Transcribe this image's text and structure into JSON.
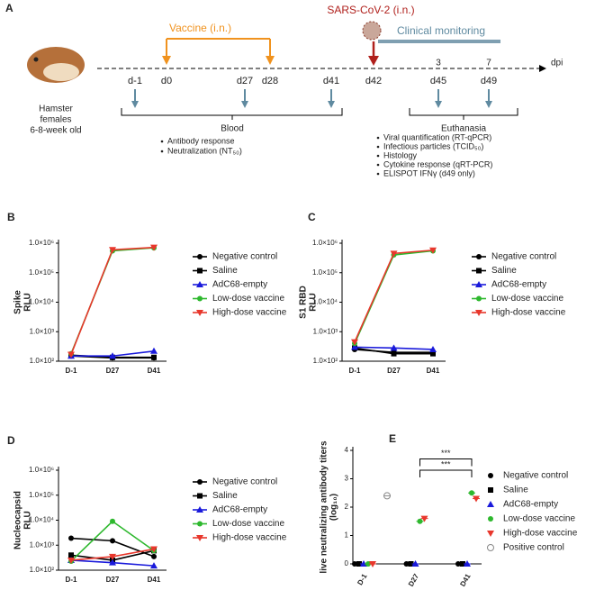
{
  "panel_a": {
    "label": "A",
    "subject": [
      "Hamster",
      "females",
      "6-8-week old"
    ],
    "vaccine": "Vaccine (i.n.)",
    "challenge": "SARS-CoV-2 (i.n.)",
    "monitoring": "Clinical monitoring",
    "dpi": "dpi",
    "dpi_marks": [
      "3",
      "7"
    ],
    "days": [
      "d-1",
      "d0",
      "d27",
      "d28",
      "d41",
      "d42",
      "d45",
      "d49"
    ],
    "blood": "Blood",
    "euthanasia": "Euthanasia",
    "blood_items": [
      "Antibody response",
      "Neutralization (NT₅₀)"
    ],
    "euthanasia_items": [
      "Viral quantification (RT-qPCR)",
      "Infectious particles (TCID₅₀)",
      "Histology",
      "Cytokine response (qRT-PCR)",
      "ELISPOT IFNγ (d49 only)"
    ]
  },
  "chart_data": [
    {
      "type": "line",
      "panel": "B",
      "ylabel": [
        "Spike",
        "RLU"
      ],
      "log_scale": true,
      "categories": [
        "D-1",
        "D27",
        "D41"
      ],
      "ylim": [
        100,
        1000000
      ],
      "yticks": [
        {
          "value": 100,
          "label": "1.0×10²"
        },
        {
          "value": 1000,
          "label": "1.0×10³"
        },
        {
          "value": 10000,
          "label": "1.0×10⁴"
        },
        {
          "value": 100000,
          "label": "1.0×10⁵"
        },
        {
          "value": 1000000,
          "label": "1.0×10⁶"
        }
      ],
      "series": [
        {
          "name": "Negative control",
          "color": "#000000",
          "values": [
            150,
            130,
            130
          ]
        },
        {
          "name": "Saline",
          "color": "#000000",
          "values": [
            160,
            135,
            135
          ]
        },
        {
          "name": "AdC68-empty",
          "color": "#1a1adb",
          "values": [
            150,
            150,
            220
          ]
        },
        {
          "name": "Low-dose vaccine",
          "color": "#2eb82e",
          "values": [
            180,
            550000,
            700000
          ]
        },
        {
          "name": "High-dose vaccine",
          "color": "#e8372c",
          "values": [
            170,
            600000,
            720000
          ]
        }
      ]
    },
    {
      "type": "line",
      "panel": "C",
      "ylabel": [
        "S1 RBD",
        "RLU"
      ],
      "log_scale": true,
      "categories": [
        "D-1",
        "D27",
        "D41"
      ],
      "ylim": [
        100,
        1000000
      ],
      "yticks": [
        {
          "value": 100,
          "label": "1.0×10²"
        },
        {
          "value": 1000,
          "label": "1.0×10³"
        },
        {
          "value": 10000,
          "label": "1.0×10⁴"
        },
        {
          "value": 100000,
          "label": "1.0×10⁵"
        },
        {
          "value": 1000000,
          "label": "1.0×10⁶"
        }
      ],
      "series": [
        {
          "name": "Negative control",
          "color": "#000000",
          "values": [
            250,
            200,
            200
          ]
        },
        {
          "name": "Saline",
          "color": "#000000",
          "values": [
            280,
            180,
            180
          ]
        },
        {
          "name": "AdC68-empty",
          "color": "#1a1adb",
          "values": [
            300,
            280,
            250
          ]
        },
        {
          "name": "Low-dose vaccine",
          "color": "#2eb82e",
          "values": [
            400,
            400000,
            550000
          ]
        },
        {
          "name": "High-dose vaccine",
          "color": "#e8372c",
          "values": [
            450,
            450000,
            580000
          ]
        }
      ]
    },
    {
      "type": "line",
      "panel": "D",
      "ylabel": [
        "Nucleocapsid",
        "RLU"
      ],
      "log_scale": true,
      "categories": [
        "D-1",
        "D27",
        "D41"
      ],
      "ylim": [
        100,
        1000000
      ],
      "yticks": [
        {
          "value": 100,
          "label": "1.0×10²"
        },
        {
          "value": 1000,
          "label": "1.0×10³"
        },
        {
          "value": 10000,
          "label": "1.0×10⁴"
        },
        {
          "value": 100000,
          "label": "1.0×10⁵"
        },
        {
          "value": 1000000,
          "label": "1.0×10⁶"
        }
      ],
      "series": [
        {
          "name": "Negative control",
          "color": "#000000",
          "values": [
            1900,
            1500,
            350
          ]
        },
        {
          "name": "Saline",
          "color": "#000000",
          "values": [
            400,
            250,
            600
          ]
        },
        {
          "name": "AdC68-empty",
          "color": "#1a1adb",
          "values": [
            250,
            200,
            150
          ]
        },
        {
          "name": "Low-dose vaccine",
          "color": "#2eb82e",
          "values": [
            230,
            9000,
            600
          ]
        },
        {
          "name": "High-dose vaccine",
          "color": "#e8372c",
          "values": [
            250,
            350,
            700
          ]
        }
      ]
    },
    {
      "type": "scatter",
      "panel": "E",
      "ylabel": [
        "live neutralizing antibody titers",
        "(log₁₀)"
      ],
      "categories": [
        "D-1",
        "D27",
        "D41"
      ],
      "ylim": [
        0,
        4
      ],
      "yticks": [
        0,
        1,
        2,
        3,
        4
      ],
      "annotations": [
        "***",
        "***"
      ],
      "series": [
        {
          "name": "Negative control",
          "color": "#000000",
          "values": [
            0,
            0,
            0
          ]
        },
        {
          "name": "Saline",
          "color": "#000000",
          "values": [
            0,
            0,
            0
          ]
        },
        {
          "name": "AdC68-empty",
          "color": "#1a1adb",
          "values": [
            0,
            0,
            0
          ]
        },
        {
          "name": "Low-dose vaccine",
          "color": "#2eb82e",
          "values": [
            0,
            1.5,
            2.5
          ]
        },
        {
          "name": "High-dose vaccine",
          "color": "#e8372c",
          "values": [
            0,
            1.6,
            2.3
          ]
        },
        {
          "name": "Positive control",
          "color": "#888888",
          "values": [
            2.4,
            null,
            null
          ]
        }
      ]
    }
  ]
}
